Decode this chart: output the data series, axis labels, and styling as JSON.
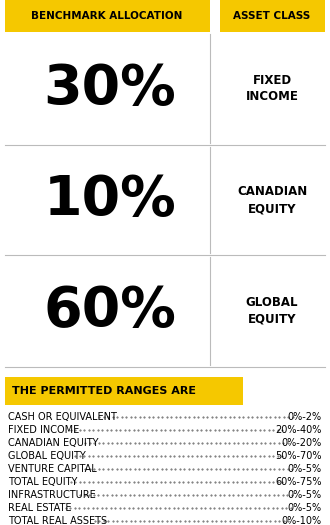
{
  "header_left": "BENCHMARK ALLOCATION",
  "header_right": "ASSET CLASS",
  "header_bg": "#F5C800",
  "rows": [
    {
      "pct": "30%",
      "label": "FIXED\nINCOME"
    },
    {
      "pct": "10%",
      "label": "CANADIAN\nEQUITY"
    },
    {
      "pct": "60%",
      "label": "GLOBAL\nEQUITY"
    }
  ],
  "divider_color": "#BBBBBB",
  "section2_title": "THE PERMITTED RANGES ARE",
  "section2_bg": "#F5C800",
  "ranges": [
    {
      "label": "CASH OR EQUIVALENT",
      "range": "0%-2%"
    },
    {
      "label": "FIXED INCOME",
      "range": "20%-40%"
    },
    {
      "label": "CANADIAN EQUITY",
      "range": "0%-20%"
    },
    {
      "label": "GLOBAL EQUITY",
      "range": "50%-70%"
    },
    {
      "label": "VENTURE CAPITAL",
      "range": "0%-5%"
    },
    {
      "label": "TOTAL EQUITY",
      "range": "60%-75%"
    },
    {
      "label": "INFRASTRUCTURE",
      "range": "0%-5%"
    },
    {
      "label": "REAL ESTATE",
      "range": "0%-5%"
    },
    {
      "label": "TOTAL REAL ASSETS",
      "range": "0%-10%"
    }
  ],
  "bg_color": "#FFFFFF",
  "text_color": "#000000",
  "pct_fontsize": 40,
  "label_fontsize": 8.5,
  "header_fontsize": 7.5,
  "range_label_fontsize": 7.0,
  "range_val_fontsize": 7.0,
  "fig_width": 3.3,
  "fig_height": 5.25,
  "dpi": 100
}
